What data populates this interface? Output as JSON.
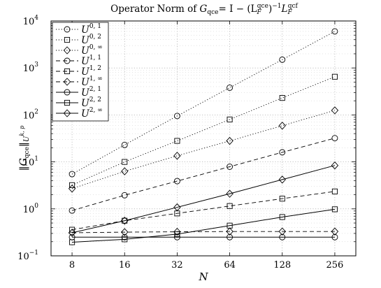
{
  "chart_data": {
    "type": "line",
    "title": "Operator Norm of G_qce = I − (L_F^qce)^−1 L_F^qcf",
    "title_parts": {
      "prefix": "Operator Norm of ",
      "lhs": "G",
      "lhs_sub": "qce",
      "eq": "= I − (L",
      "l1_sub": "F",
      "l1_sup": "qce",
      "mid": ")",
      "inv": "−1",
      "l2": "L",
      "l2_sub": "F",
      "l2_sup": "qcf"
    },
    "xlabel": "N",
    "ylabel": "‖G_qce‖_U^k,p",
    "ylabel_parts": {
      "open": "‖",
      "G": "G",
      "G_sub": "qce",
      "close": "‖",
      "U": "U",
      "U_sup": "k, p"
    },
    "x": [
      8,
      16,
      32,
      64,
      128,
      256
    ],
    "x_tick_labels": [
      "8",
      "16",
      "32",
      "64",
      "128",
      "256"
    ],
    "xscale": "log2",
    "yscale": "log10",
    "ylim": [
      0.1,
      10000
    ],
    "y_ticks": [
      {
        "base": "10",
        "exp": "−1",
        "value": 0.1
      },
      {
        "base": "10",
        "exp": "0",
        "value": 1
      },
      {
        "base": "10",
        "exp": "1",
        "value": 10
      },
      {
        "base": "10",
        "exp": "2",
        "value": 100
      },
      {
        "base": "10",
        "exp": "3",
        "value": 1000
      },
      {
        "base": "10",
        "exp": "4",
        "value": 10000
      }
    ],
    "grid": true,
    "legend_position": "top-left",
    "series": [
      {
        "name": "U^{0,1}",
        "label": "U",
        "sup": "0, 1",
        "style": "dotted",
        "marker": "circle",
        "values": [
          5.5,
          23,
          95,
          380,
          1500,
          6000
        ]
      },
      {
        "name": "U^{0,2}",
        "label": "U",
        "sup": "0, 2",
        "style": "dotted",
        "marker": "square",
        "values": [
          3.2,
          10,
          28,
          80,
          230,
          650
        ]
      },
      {
        "name": "U^{0,∞}",
        "label": "U",
        "sup": "0, ∞",
        "style": "dotted",
        "marker": "diamond",
        "values": [
          2.7,
          6.3,
          13.5,
          28,
          59,
          125
        ]
      },
      {
        "name": "U^{1,1}",
        "label": "U",
        "sup": "1, 1",
        "style": "dashed",
        "marker": "circle",
        "values": [
          0.92,
          1.95,
          3.9,
          7.9,
          16,
          32
        ]
      },
      {
        "name": "U^{1,2}",
        "label": "U",
        "sup": "1, 2",
        "style": "dashed",
        "marker": "square",
        "values": [
          0.36,
          0.56,
          0.8,
          1.15,
          1.65,
          2.35
        ]
      },
      {
        "name": "U^{1,∞}",
        "label": "U",
        "sup": "1, ∞",
        "style": "dashed",
        "marker": "diamond",
        "values": [
          0.31,
          0.32,
          0.325,
          0.33,
          0.33,
          0.33
        ]
      },
      {
        "name": "U^{2,1}",
        "label": "U",
        "sup": "2, 1",
        "style": "solid",
        "marker": "circle",
        "values": [
          0.25,
          0.25,
          0.25,
          0.25,
          0.25,
          0.25
        ]
      },
      {
        "name": "U^{2,2}",
        "label": "U",
        "sup": "2, 2",
        "style": "solid",
        "marker": "square",
        "values": [
          0.195,
          0.225,
          0.29,
          0.44,
          0.67,
          0.98
        ]
      },
      {
        "name": "U^{2,∞}",
        "label": "U",
        "sup": "2, ∞",
        "style": "solid",
        "marker": "diamond",
        "values": [
          0.31,
          0.56,
          1.08,
          2.1,
          4.2,
          8.4
        ]
      }
    ]
  }
}
